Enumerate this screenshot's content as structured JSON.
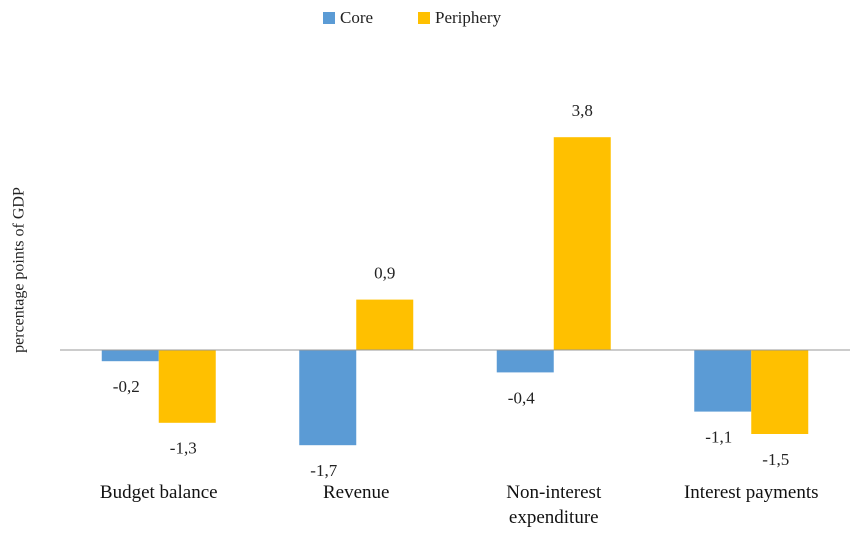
{
  "chart_data": {
    "type": "bar",
    "y_label": "percentage points of GDP",
    "categories": [
      "Budget balance",
      "Revenue",
      "Non-interest expenditure",
      "Interest payments"
    ],
    "series": [
      {
        "name": "Core",
        "color": "#5b9bd5",
        "values": [
          -0.2,
          -1.7,
          -0.4,
          -1.1
        ],
        "value_labels": [
          "-0,2",
          "-1,7",
          "-0,4",
          "-1,1"
        ]
      },
      {
        "name": "Periphery",
        "color": "#ffc000",
        "values": [
          -1.3,
          0.9,
          3.8,
          -1.5
        ],
        "value_labels": [
          "-1,3",
          "0,9",
          "3,8",
          "-1,5"
        ]
      }
    ],
    "ylim": [
      -2,
      4
    ],
    "legend": "top"
  }
}
